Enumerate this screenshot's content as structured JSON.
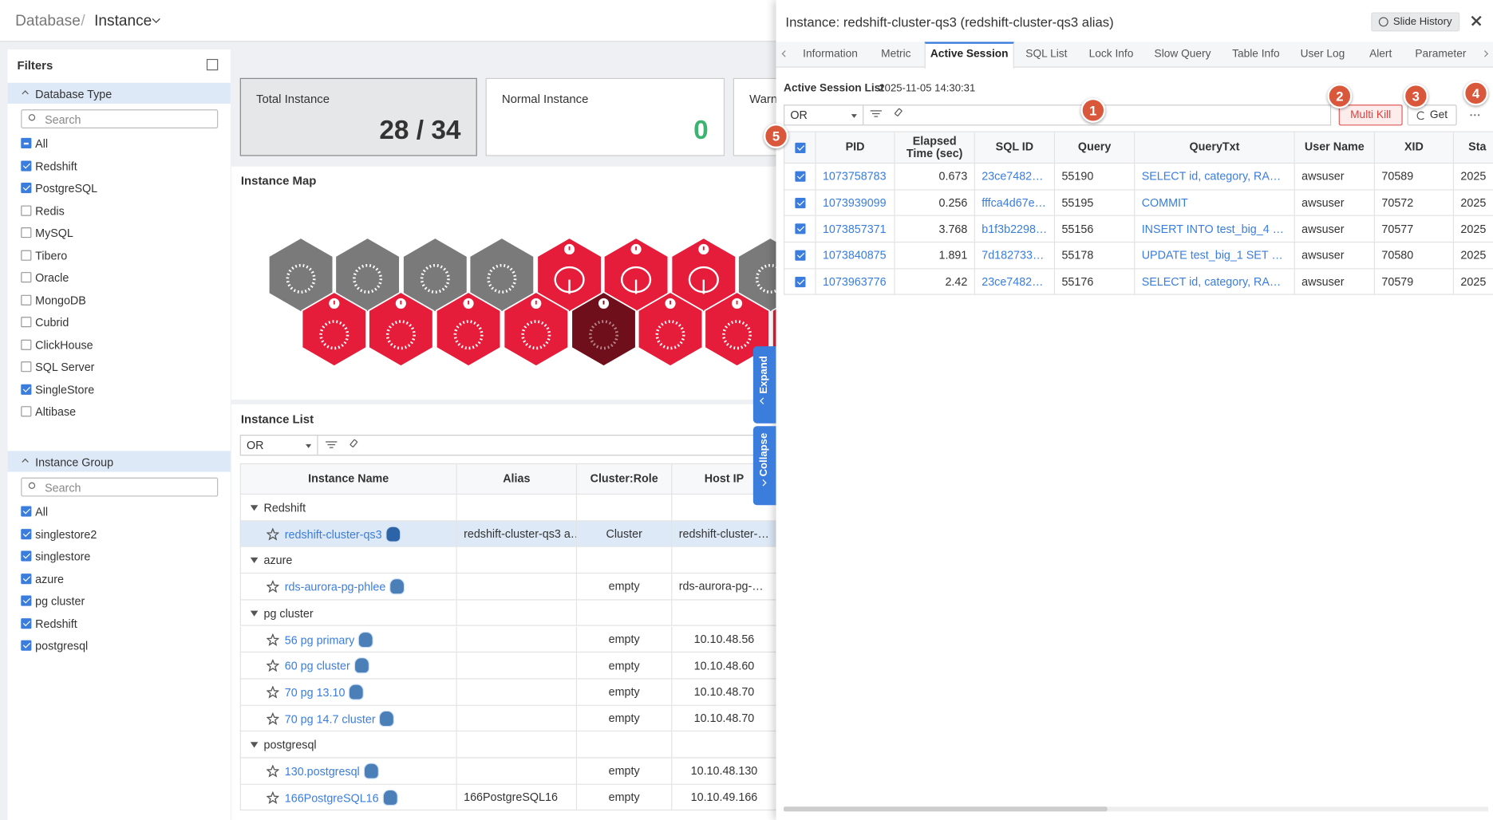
{
  "header": {
    "breadcrumb": [
      "Database",
      "Instance"
    ],
    "separator": "/"
  },
  "filters": {
    "title": "Filters",
    "groups": [
      {
        "title": "Database Type",
        "search_placeholder": "Search",
        "items": [
          {
            "label": "All",
            "state": "partial"
          },
          {
            "label": "Redshift",
            "state": "checked"
          },
          {
            "label": "PostgreSQL",
            "state": "checked"
          },
          {
            "label": "Redis",
            "state": "unchecked"
          },
          {
            "label": "MySQL",
            "state": "unchecked"
          },
          {
            "label": "Tibero",
            "state": "unchecked"
          },
          {
            "label": "Oracle",
            "state": "unchecked"
          },
          {
            "label": "MongoDB",
            "state": "unchecked"
          },
          {
            "label": "Cubrid",
            "state": "unchecked"
          },
          {
            "label": "ClickHouse",
            "state": "unchecked"
          },
          {
            "label": "SQL Server",
            "state": "unchecked"
          },
          {
            "label": "SingleStore",
            "state": "checked"
          },
          {
            "label": "Altibase",
            "state": "unchecked"
          }
        ]
      },
      {
        "title": "Instance Group",
        "search_placeholder": "Search",
        "items": [
          {
            "label": "All",
            "state": "checked"
          },
          {
            "label": "singlestore2",
            "state": "checked"
          },
          {
            "label": "singlestore",
            "state": "checked"
          },
          {
            "label": "azure",
            "state": "checked"
          },
          {
            "label": "pg cluster",
            "state": "checked"
          },
          {
            "label": "Redshift",
            "state": "checked"
          },
          {
            "label": "postgresql",
            "state": "checked"
          }
        ]
      }
    ]
  },
  "summary_cards": [
    {
      "label": "Total Instance",
      "value": "28 / 34"
    },
    {
      "label": "Normal Instance",
      "value": 0
    },
    {
      "label": "Warn"
    }
  ],
  "instance_map": {
    "title": "Instance Map"
  },
  "instance_list": {
    "title": "Instance List",
    "filter_mode": "OR",
    "columns": [
      "Instance Name",
      "Alias",
      "Cluster:Role",
      "Host IP"
    ],
    "rows": [
      {
        "group": "Redshift"
      },
      {
        "name": "redshift-cluster-qs3",
        "alias": "redshift-cluster-qs3 a…",
        "cluster_role": "Cluster",
        "host_ip": "redshift-cluster-…",
        "selected": true
      },
      {
        "group": "azure"
      },
      {
        "name": "rds-aurora-pg-phlee",
        "cluster_role": "empty",
        "host_ip": "rds-aurora-pg-p…"
      },
      {
        "group": "pg cluster"
      },
      {
        "name": "56 pg primary",
        "cluster_role": "empty",
        "host_ip": "10.10.48.56"
      },
      {
        "name": "60 pg cluster",
        "cluster_role": "empty",
        "host_ip": "10.10.48.60"
      },
      {
        "name": "70 pg 13.10",
        "cluster_role": "empty",
        "host_ip": "10.10.48.70"
      },
      {
        "name": "70 pg 14.7 cluster",
        "cluster_role": "empty",
        "host_ip": "10.10.48.70"
      },
      {
        "group": "postgresql"
      },
      {
        "name": "130.postgresql",
        "cluster_role": "empty",
        "host_ip": "10.10.48.130"
      },
      {
        "name": "166PostgreSQL16",
        "alias": "166PostgreSQL16",
        "cluster_role": "empty",
        "host_ip": "10.10.49.166"
      }
    ]
  },
  "side_tabs": [
    "Expand",
    "Collapse"
  ],
  "panel": {
    "title": "Instance: redshift-cluster-qs3 (redshift-cluster-qs3 alias)",
    "history_button": "Slide History",
    "tabs": [
      {
        "label": "Information"
      },
      {
        "label": "Metric"
      },
      {
        "label": "Active Session",
        "active": true
      },
      {
        "label": "SQL List"
      },
      {
        "label": "Lock Info"
      },
      {
        "label": "Slow Query"
      },
      {
        "label": "Table Info"
      },
      {
        "label": "User Log"
      },
      {
        "label": "Alert"
      },
      {
        "label": "Parameter"
      }
    ],
    "session_list": {
      "title": "Active Session List",
      "timestamp": "2025-11-05 14:30:31",
      "filter_mode": "OR",
      "kill_button": "Multi Kill",
      "get_button": "Get",
      "badges": [
        1,
        2,
        3,
        4,
        5
      ],
      "columns": [
        "PID",
        "Elapsed Time (sec)",
        "SQL ID",
        "Query",
        "QueryTxt",
        "User Name",
        "XID",
        "Sta"
      ],
      "all_selected": true,
      "rows": [
        {
          "pid": 1073758783,
          "elapsed_time": 0.673,
          "sql_id": "23ce74824e…",
          "query": 55190,
          "query_txt": "SELECT id, category, RANK() …",
          "user_name": "awsuser",
          "xid": 70589,
          "start": "2025"
        },
        {
          "pid": 1073939099,
          "elapsed_time": 0.256,
          "sql_id": "fffca4d67ea…",
          "query": 55195,
          "query_txt": "COMMIT",
          "user_name": "awsuser",
          "xid": 70572,
          "start": "2025"
        },
        {
          "pid": 1073857371,
          "elapsed_time": 3.768,
          "sql_id": "b1f3b22986…",
          "query": 55156,
          "query_txt": "INSERT INTO test_big_4 (cate…",
          "user_name": "awsuser",
          "xid": 70577,
          "start": "2025"
        },
        {
          "pid": 1073840875,
          "elapsed_time": 1.891,
          "sql_id": "7d18273395…",
          "query": 55178,
          "query_txt": "UPDATE test_big_1 SET paylo…",
          "user_name": "awsuser",
          "xid": 70580,
          "start": "2025"
        },
        {
          "pid": 1073963776,
          "elapsed_time": 2.42,
          "sql_id": "23ce74824e…",
          "query": 55176,
          "query_txt": "SELECT id, category, RANK() …",
          "user_name": "awsuser",
          "xid": 70579,
          "start": "2025"
        }
      ]
    }
  }
}
